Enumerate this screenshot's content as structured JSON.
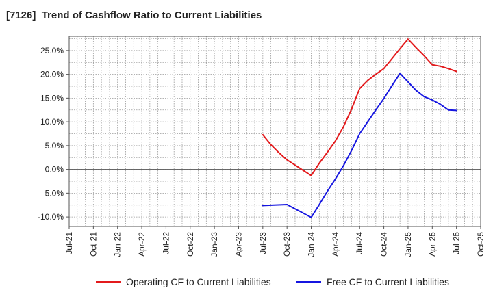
{
  "chart_data": {
    "type": "line",
    "title": "[7126]  Trend of Cashflow Ratio to Current Liabilities",
    "xlabel": "",
    "ylabel": "",
    "ylim": [
      -12,
      28
    ],
    "yticks": [
      -10,
      -5,
      0,
      5,
      10,
      15,
      20,
      25
    ],
    "ytick_labels": [
      "-10.0%",
      "-5.0%",
      "0.0%",
      "5.0%",
      "10.0%",
      "15.0%",
      "20.0%",
      "25.0%"
    ],
    "x_tick_labels": [
      "Jul-21",
      "Oct-21",
      "Jan-22",
      "Apr-22",
      "Jul-22",
      "Oct-22",
      "Jan-23",
      "Apr-23",
      "Jul-23",
      "Oct-23",
      "Jan-24",
      "Apr-24",
      "Jul-24",
      "Oct-24",
      "Jan-25",
      "Apr-25",
      "Jul-25",
      "Oct-25"
    ],
    "grid": true,
    "legend_position": "bottom",
    "series": [
      {
        "name": "Operating CF to Current Liabilities",
        "color": "#e31a1c",
        "x": [
          "Jul-23",
          "Aug-23",
          "Sep-23",
          "Oct-23",
          "Nov-23",
          "Dec-23",
          "Jan-24",
          "Feb-24",
          "Mar-24",
          "Apr-24",
          "May-24",
          "Jun-24",
          "Jul-24",
          "Aug-24",
          "Sep-24",
          "Oct-24",
          "Nov-24",
          "Dec-24",
          "Jan-25",
          "Feb-25",
          "Mar-25",
          "Apr-25",
          "May-25",
          "Jun-25",
          "Jul-25"
        ],
        "values": [
          7.3,
          5.2,
          3.5,
          2.0,
          0.9,
          -0.2,
          -1.3,
          1.3,
          3.6,
          6.0,
          9.0,
          12.7,
          17.0,
          18.7,
          20.0,
          21.2,
          23.3,
          25.4,
          27.4,
          25.6,
          23.9,
          22.0,
          21.7,
          21.2,
          20.6
        ]
      },
      {
        "name": "Free CF to Current Liabilities",
        "color": "#1515e0",
        "x": [
          "Jul-23",
          "Oct-23",
          "Jan-24",
          "Feb-24",
          "Mar-24",
          "Apr-24",
          "May-24",
          "Jun-24",
          "Jul-24",
          "Aug-24",
          "Sep-24",
          "Oct-24",
          "Nov-24",
          "Dec-24",
          "Jan-25",
          "Feb-25",
          "Mar-25",
          "Apr-25",
          "May-25",
          "Jun-25",
          "Jul-25"
        ],
        "values": [
          -7.6,
          -7.4,
          -10.1,
          -7.4,
          -4.6,
          -2.0,
          0.8,
          4.0,
          7.5,
          10.0,
          12.5,
          14.9,
          17.6,
          20.2,
          18.4,
          16.6,
          15.3,
          14.6,
          13.7,
          12.5,
          12.4
        ]
      }
    ]
  }
}
